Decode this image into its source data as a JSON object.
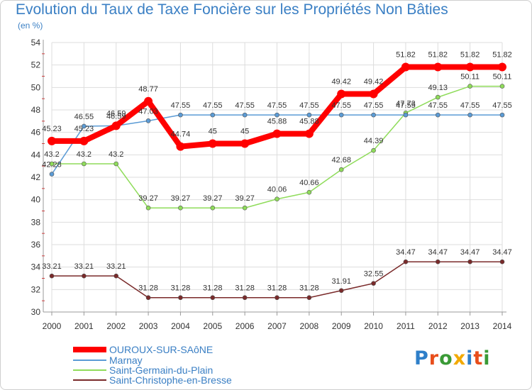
{
  "title": "Evolution du Taux de Taxe Foncière sur les Propriétés Non Bâties",
  "unit": "(en %)",
  "logo": {
    "text": "Proxiti",
    "colors": [
      "#2e7fc9",
      "#e84e1b",
      "#3a9a36",
      "#f2a900",
      "#2e7fc9",
      "#e84e1b",
      "#3a9a36"
    ]
  },
  "chart_data": {
    "type": "line",
    "title": "Evolution du Taux de Taxe Foncière sur les Propriétés Non Bâties",
    "ylabel": "(en %)",
    "x": [
      "2000",
      "2001",
      "2002",
      "2003",
      "2004",
      "2005",
      "2006",
      "2007",
      "2008",
      "2009",
      "2010",
      "2011",
      "2012",
      "2013",
      "2014"
    ],
    "ylim": [
      30,
      54
    ],
    "yticks": [
      30,
      32,
      34,
      36,
      38,
      40,
      42,
      44,
      46,
      48,
      50,
      52,
      54
    ],
    "grid": true,
    "legend_position": "bottom-left",
    "series": [
      {
        "name": "OUROUX-SUR-SAôNE",
        "color": "#ff0000",
        "values": [
          45.23,
          45.23,
          46.59,
          48.77,
          44.74,
          45,
          45,
          45.88,
          45.88,
          49.42,
          49.42,
          51.82,
          51.82,
          51.82,
          51.82
        ],
        "labels": [
          "45.23",
          "45.23",
          "46.59",
          "48.77",
          "44.74",
          "45",
          "45",
          "45.88",
          "45.88",
          "49.42",
          "49.42",
          "51.82",
          "51.82",
          "51.82",
          "51.82"
        ]
      },
      {
        "name": "Marnay",
        "color": "#5b9bd5",
        "values": [
          42.28,
          46.55,
          46.59,
          47.03,
          47.55,
          47.55,
          47.55,
          47.55,
          47.55,
          47.55,
          47.55,
          47.55,
          47.55,
          47.55,
          47.55
        ],
        "labels": [
          "42.28",
          "46.55",
          "46.59",
          "47.03",
          "47.55",
          "47.55",
          "47.55",
          "47.55",
          "47.55",
          "47.55",
          "47.55",
          "47.55",
          "47.55",
          "47.55",
          "47.55"
        ]
      },
      {
        "name": "Saint-Germain-du-Plain",
        "color": "#8fdc5a",
        "values": [
          43.2,
          43.2,
          43.2,
          39.27,
          39.27,
          39.27,
          39.27,
          40.06,
          40.66,
          42.68,
          44.39,
          47.73,
          49.13,
          50.11,
          50.11
        ],
        "labels": [
          "43.2",
          "43.2",
          "43.2",
          "39.27",
          "39.27",
          "39.27",
          "39.27",
          "40.06",
          "40.66",
          "42.68",
          "44.39",
          "47.73",
          "49.13",
          "50.11",
          "50.11"
        ]
      },
      {
        "name": "Saint-Christophe-en-Bresse",
        "color": "#7a2a2a",
        "values": [
          33.21,
          33.21,
          33.21,
          31.28,
          31.28,
          31.28,
          31.28,
          31.28,
          31.28,
          31.91,
          32.55,
          34.47,
          34.47,
          34.47,
          34.47
        ],
        "labels": [
          "33.21",
          "33.21",
          "33.21",
          "31.28",
          "31.28",
          "31.28",
          "31.28",
          "31.28",
          "31.28",
          "31.91",
          "32.55",
          "34.47",
          "34.47",
          "34.47",
          "34.47"
        ]
      }
    ]
  }
}
